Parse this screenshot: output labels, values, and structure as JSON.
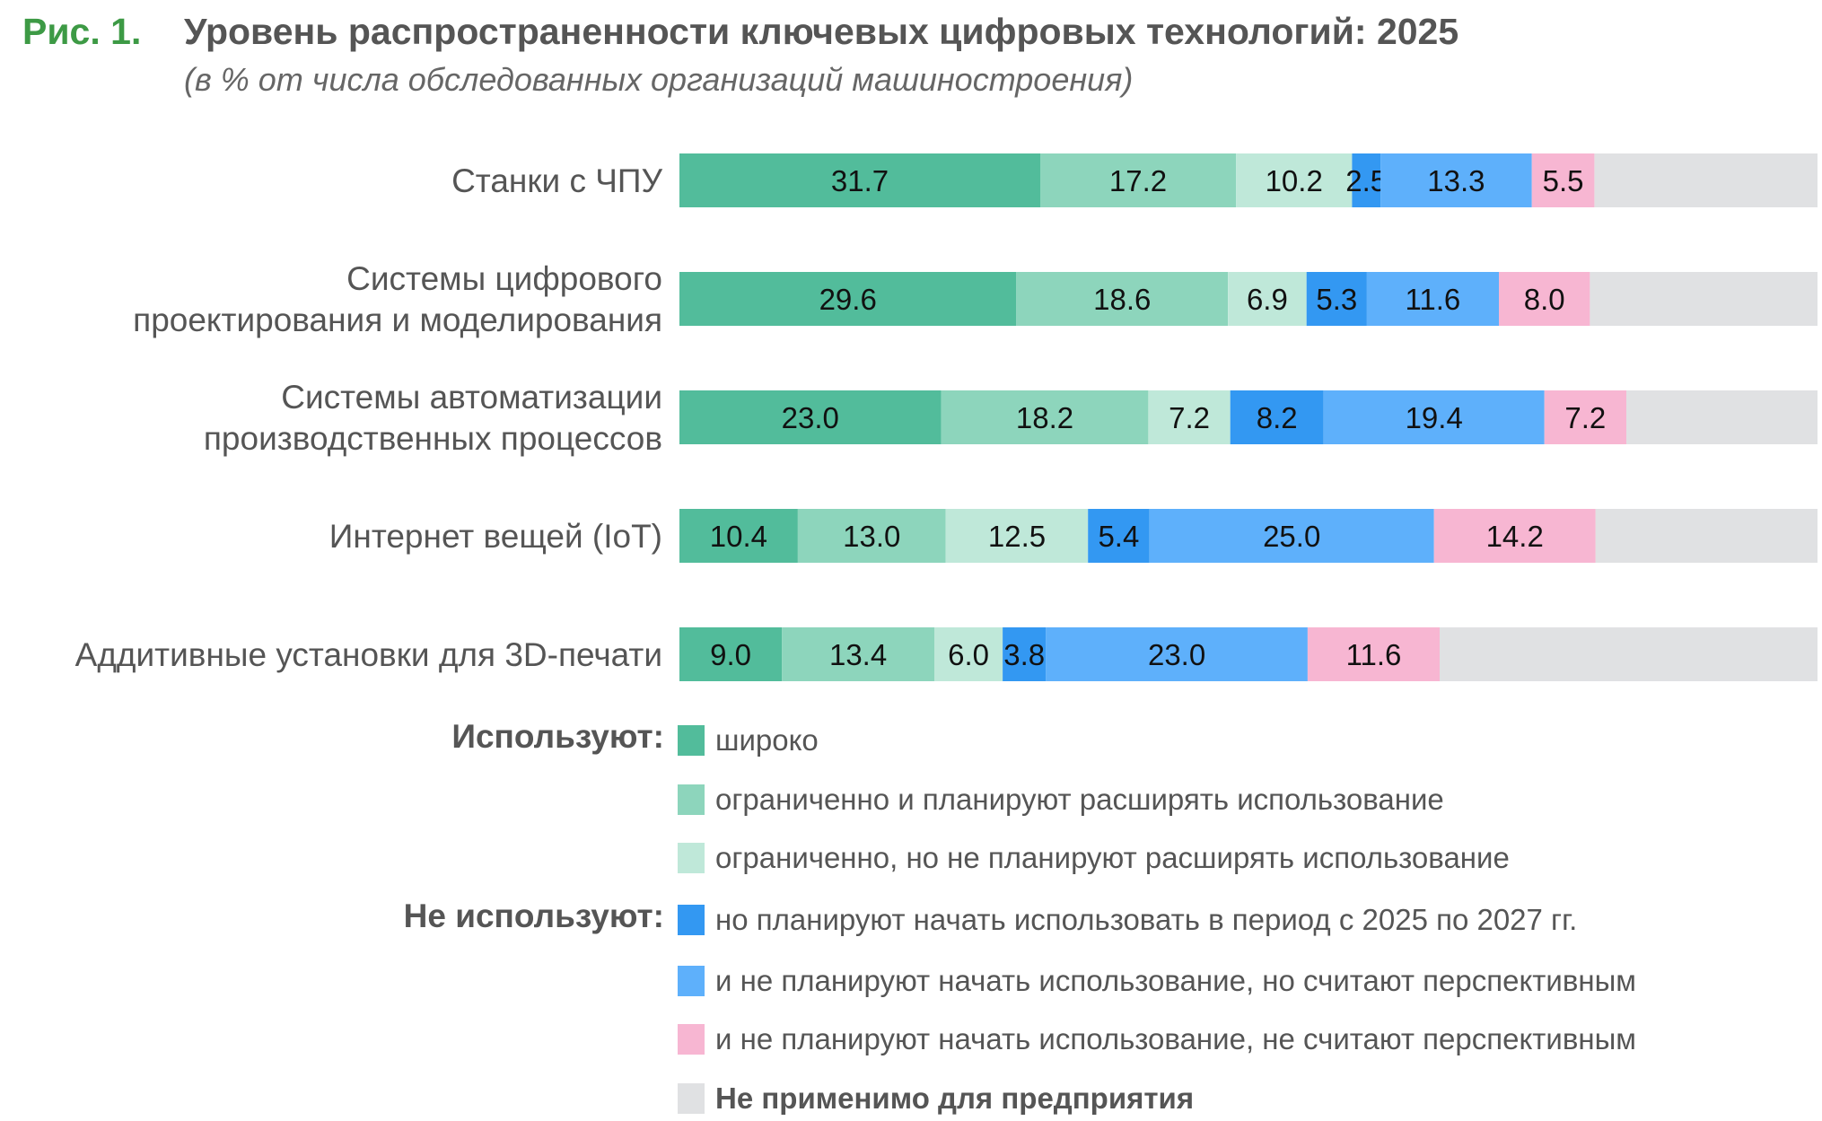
{
  "figure": {
    "label": "Рис. 1.",
    "title": "Уровень распространенности ключевых цифровых технологий: 2025",
    "subtitle": "(в % от числа обследованных организаций машиностроения)"
  },
  "legend": {
    "group_using": "Используют:",
    "group_not_using": "Не используют:",
    "items": [
      {
        "label": "широко",
        "color": "#52bc9b"
      },
      {
        "label": "ограниченно и планируют расширять использование",
        "color": "#8dd5bc"
      },
      {
        "label": "ограниченно, но не планируют расширять использование",
        "color": "#bfe8d9"
      },
      {
        "label": "но планируют начать использовать в период с 2025 по 2027 гг.",
        "color": "#3398f2"
      },
      {
        "label": "и не планируют начать использование, но считают перспективным",
        "color": "#5eb0fb"
      },
      {
        "label": "и не планируют начать использование, не считают перспективным",
        "color": "#f7b6d2"
      },
      {
        "label": "Не применимо для предприятия",
        "color": "#e0e1e3"
      }
    ]
  },
  "chart_data": {
    "type": "bar",
    "orientation": "horizontal",
    "stacked": true,
    "xlim": [
      0,
      100
    ],
    "categories": [
      [
        "Станки с ЧПУ"
      ],
      [
        "Системы цифрового",
        "проектирования и моделирования"
      ],
      [
        "Системы автоматизации",
        "производственных процессов"
      ],
      [
        "Интернет вещей (IoT)"
      ],
      [
        "Аддитивные установки для 3D-печати"
      ]
    ],
    "series": [
      {
        "name": "широко",
        "color": "#52bc9b",
        "values": [
          31.7,
          29.6,
          23.0,
          10.4,
          9.0
        ],
        "labels": [
          "31.7",
          "29.6",
          "23.0",
          "10.4",
          "9.0"
        ]
      },
      {
        "name": "ограниченно и планируют расширять использование",
        "color": "#8dd5bc",
        "values": [
          17.2,
          18.6,
          18.2,
          13.0,
          13.4
        ],
        "labels": [
          "17.2",
          "18.6",
          "18.2",
          "13.0",
          "13.4"
        ]
      },
      {
        "name": "ограниченно, но не планируют расширять использование",
        "color": "#bfe8d9",
        "values": [
          10.2,
          6.9,
          7.2,
          12.5,
          6.0
        ],
        "labels": [
          "10.2",
          "6.9",
          "7.2",
          "12.5",
          "6.0"
        ]
      },
      {
        "name": "но планируют начать использовать в период с 2025 по 2027 гг.",
        "color": "#3398f2",
        "values": [
          2.5,
          5.3,
          8.2,
          5.4,
          3.8
        ],
        "labels": [
          "2.5",
          "5.3",
          "8.2",
          "5.4",
          "3.8"
        ]
      },
      {
        "name": "и не планируют начать использование, но считают перспективным",
        "color": "#5eb0fb",
        "values": [
          13.3,
          11.6,
          19.4,
          25.0,
          23.0
        ],
        "labels": [
          "13.3",
          "11.6",
          "19.4",
          "25.0",
          "23.0"
        ]
      },
      {
        "name": "и не планируют начать использование, не считают перспективным",
        "color": "#f7b6d2",
        "values": [
          5.5,
          8.0,
          7.2,
          14.2,
          11.6
        ],
        "labels": [
          "5.5",
          "8.0",
          "7.2",
          "14.2",
          "11.6"
        ]
      },
      {
        "name": "Не применимо для предприятия",
        "color": "#e0e1e3",
        "values": [
          19.6,
          20.0,
          16.8,
          19.5,
          33.2
        ],
        "labels": [
          "",
          "",
          "",
          "",
          ""
        ]
      }
    ]
  }
}
